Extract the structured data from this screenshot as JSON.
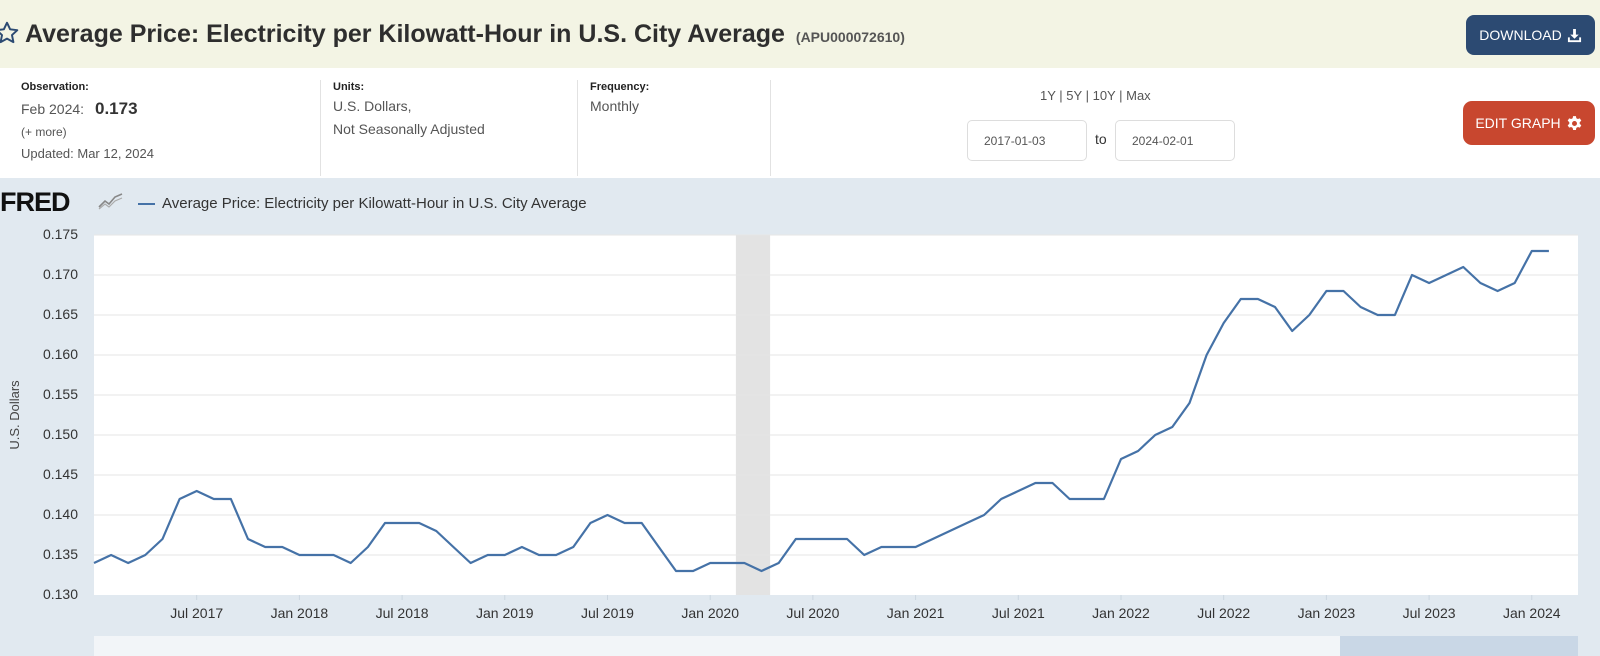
{
  "header": {
    "title": "Average Price: Electricity per Kilowatt-Hour in U.S. City Average",
    "series_id": "(APU000072610)",
    "download_label": "DOWNLOAD",
    "star_icon": "star-outline-icon",
    "download_icon": "download-icon"
  },
  "observation": {
    "label": "Observation:",
    "date": "Feb 2024:",
    "value": "0.173",
    "more": "(+ more)",
    "updated": "Updated: Mar 12, 2024"
  },
  "units": {
    "label": "Units:",
    "line1": "U.S. Dollars,",
    "line2": "Not Seasonally Adjusted"
  },
  "frequency": {
    "label": "Frequency:",
    "value": "Monthly"
  },
  "range": {
    "links": [
      "1Y",
      "5Y",
      "10Y",
      "Max"
    ],
    "start_date": "2017-01-03",
    "end_date": "2024-02-01",
    "to_label": "to"
  },
  "edit_graph_label": "EDIT GRAPH",
  "brand": {
    "logo_text": "FRED",
    "accent": "#2c4a72",
    "edit_color": "#c8472f",
    "line_color": "#4572a7"
  },
  "chart_data": {
    "type": "line",
    "ylabel": "U.S. Dollars",
    "ylim": [
      0.13,
      0.175
    ],
    "yticks": [
      "0.130",
      "0.135",
      "0.140",
      "0.145",
      "0.150",
      "0.155",
      "0.160",
      "0.165",
      "0.170",
      "0.175"
    ],
    "x_start": "2017-01",
    "xticks": [
      "Jul 2017",
      "Jan 2018",
      "Jul 2018",
      "Jan 2019",
      "Jul 2019",
      "Jan 2020",
      "Jul 2020",
      "Jan 2021",
      "Jul 2021",
      "Jan 2022",
      "Jul 2022",
      "Jan 2023",
      "Jul 2023",
      "Jan 2024"
    ],
    "recession": [
      "2020-03",
      "2020-04"
    ],
    "grid": true,
    "series": [
      {
        "name": "Average Price: Electricity per Kilowatt-Hour in U.S. City Average",
        "x": [
          "2017-01",
          "2017-02",
          "2017-03",
          "2017-04",
          "2017-05",
          "2017-06",
          "2017-07",
          "2017-08",
          "2017-09",
          "2017-10",
          "2017-11",
          "2017-12",
          "2018-01",
          "2018-02",
          "2018-03",
          "2018-04",
          "2018-05",
          "2018-06",
          "2018-07",
          "2018-08",
          "2018-09",
          "2018-10",
          "2018-11",
          "2018-12",
          "2019-01",
          "2019-02",
          "2019-03",
          "2019-04",
          "2019-05",
          "2019-06",
          "2019-07",
          "2019-08",
          "2019-09",
          "2019-10",
          "2019-11",
          "2019-12",
          "2020-01",
          "2020-02",
          "2020-03",
          "2020-04",
          "2020-05",
          "2020-06",
          "2020-07",
          "2020-08",
          "2020-09",
          "2020-10",
          "2020-11",
          "2020-12",
          "2021-01",
          "2021-02",
          "2021-03",
          "2021-04",
          "2021-05",
          "2021-06",
          "2021-07",
          "2021-08",
          "2021-09",
          "2021-10",
          "2021-11",
          "2021-12",
          "2022-01",
          "2022-02",
          "2022-03",
          "2022-04",
          "2022-05",
          "2022-06",
          "2022-07",
          "2022-08",
          "2022-09",
          "2022-10",
          "2022-11",
          "2022-12",
          "2023-01",
          "2023-02",
          "2023-03",
          "2023-04",
          "2023-05",
          "2023-06",
          "2023-07",
          "2023-08",
          "2023-09",
          "2023-10",
          "2023-11",
          "2023-12",
          "2024-01",
          "2024-02"
        ],
        "values": [
          0.134,
          0.135,
          0.134,
          0.135,
          0.137,
          0.142,
          0.143,
          0.142,
          0.142,
          0.137,
          0.136,
          0.136,
          0.135,
          0.135,
          0.135,
          0.134,
          0.136,
          0.139,
          0.139,
          0.139,
          0.138,
          0.136,
          0.134,
          0.135,
          0.135,
          0.136,
          0.135,
          0.135,
          0.136,
          0.139,
          0.14,
          0.139,
          0.139,
          0.136,
          0.133,
          0.133,
          0.134,
          0.134,
          0.134,
          0.133,
          0.134,
          0.137,
          0.137,
          0.137,
          0.137,
          0.135,
          0.136,
          0.136,
          0.136,
          0.137,
          0.138,
          0.139,
          0.14,
          0.142,
          0.143,
          0.144,
          0.144,
          0.142,
          0.142,
          0.142,
          0.147,
          0.148,
          0.15,
          0.151,
          0.154,
          0.16,
          0.164,
          0.167,
          0.167,
          0.166,
          0.163,
          0.165,
          0.168,
          0.168,
          0.166,
          0.165,
          0.165,
          0.17,
          0.169,
          0.17,
          0.171,
          0.169,
          0.168,
          0.169,
          0.173,
          0.173
        ]
      }
    ]
  }
}
